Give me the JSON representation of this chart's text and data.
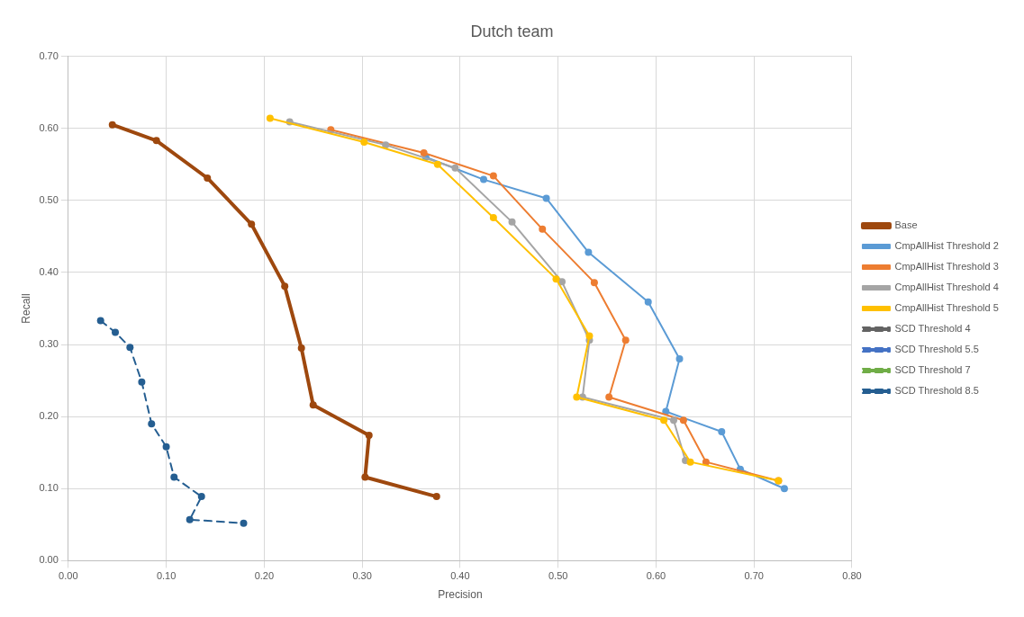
{
  "chart_data": {
    "type": "line",
    "title": "Dutch team",
    "xlabel": "Precision",
    "ylabel": "Recall",
    "xlim": [
      0,
      0.8
    ],
    "ylim": [
      0,
      0.7
    ],
    "xticks": [
      {
        "value": 0,
        "label": "0.00"
      },
      {
        "value": 0.1,
        "label": "0.10"
      },
      {
        "value": 0.2,
        "label": "0.20"
      },
      {
        "value": 0.3,
        "label": "0.30"
      },
      {
        "value": 0.4,
        "label": "0.40"
      },
      {
        "value": 0.5,
        "label": "0.50"
      },
      {
        "value": 0.6,
        "label": "0.60"
      },
      {
        "value": 0.7,
        "label": "0.70"
      },
      {
        "value": 0.8,
        "label": "0.80"
      }
    ],
    "yticks": [
      {
        "value": 0,
        "label": "0.00"
      },
      {
        "value": 0.1,
        "label": "0.10"
      },
      {
        "value": 0.2,
        "label": "0.20"
      },
      {
        "value": 0.3,
        "label": "0.30"
      },
      {
        "value": 0.4,
        "label": "0.40"
      },
      {
        "value": 0.5,
        "label": "0.50"
      },
      {
        "value": 0.6,
        "label": "0.60"
      },
      {
        "value": 0.7,
        "label": "0.70"
      }
    ],
    "grid": true,
    "legend": "right",
    "marker": "circle",
    "line_style": "solid",
    "series": [
      {
        "name": "Base",
        "color": "#9e480e",
        "x": [
          0.045,
          0.09,
          0.142,
          0.187,
          0.221,
          0.238,
          0.25,
          0.307,
          0.303,
          0.376
        ],
        "values": [
          0.605,
          0.583,
          0.531,
          0.467,
          0.381,
          0.295,
          0.216,
          0.174,
          0.116,
          0.089
        ]
      },
      {
        "name": "CmpAllHist Threshold 2",
        "color": "#5b9bd5",
        "x": [
          0.365,
          0.424,
          0.488,
          0.531,
          0.592,
          0.624,
          0.61,
          0.667,
          0.686,
          0.731
        ],
        "values": [
          0.56,
          0.529,
          0.503,
          0.428,
          0.359,
          0.28,
          0.207,
          0.179,
          0.127,
          0.1
        ]
      },
      {
        "name": "CmpAllHist Threshold 3",
        "color": "#ed7d31",
        "x": [
          0.268,
          0.363,
          0.434,
          0.484,
          0.537,
          0.569,
          0.552,
          0.628,
          0.651,
          0.725
        ],
        "values": [
          0.598,
          0.566,
          0.534,
          0.46,
          0.386,
          0.306,
          0.227,
          0.195,
          0.137,
          0.111
        ]
      },
      {
        "name": "CmpAllHist Threshold 4",
        "color": "#a5a5a5",
        "x": [
          0.226,
          0.324,
          0.363,
          0.395,
          0.453,
          0.504,
          0.532,
          0.525,
          0.618,
          0.63
        ],
        "values": [
          0.609,
          0.577,
          null,
          0.545,
          0.47,
          0.387,
          0.306,
          0.227,
          0.195,
          0.139
        ]
      },
      {
        "name": "CmpAllHist Threshold 5",
        "color": "#ffc000",
        "x": [
          0.206,
          0.302,
          0.377,
          0.434,
          0.498,
          0.532,
          0.519,
          0.608,
          0.635,
          0.725
        ],
        "values": [
          0.614,
          0.581,
          0.55,
          0.476,
          0.391,
          0.312,
          0.227,
          0.195,
          0.137,
          0.111
        ]
      },
      {
        "name": "SCD Threshold 4",
        "color": "#636363",
        "line_style": "dashed"
      },
      {
        "name": "SCD Threshold 5.5",
        "color": "#4472c4",
        "line_style": "dashed"
      },
      {
        "name": "SCD Threshold 7",
        "color": "#70ad47",
        "line_style": "dashed"
      },
      {
        "name": "SCD Threshold 8.5",
        "color": "#255e91",
        "line_style": "dashed",
        "x": [
          0.033,
          0.048,
          0.063,
          0.075,
          0.085,
          0.1,
          0.108,
          0.136,
          0.124,
          0.179
        ],
        "values": [
          0.333,
          0.317,
          0.296,
          0.248,
          0.19,
          0.158,
          0.116,
          0.089,
          0.057,
          0.052
        ]
      }
    ]
  }
}
